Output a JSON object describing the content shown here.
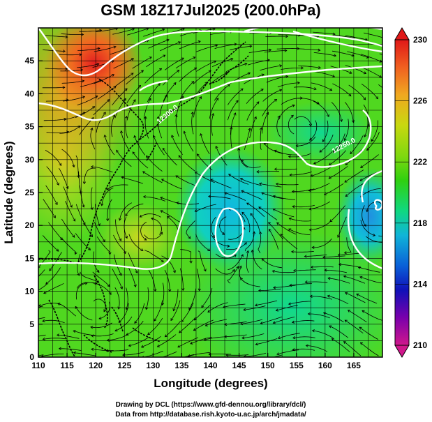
{
  "title": "GSM 18Z17Jul2025 (200.0hPa)",
  "xaxis": {
    "label": "Longitude (degrees)",
    "range": [
      110,
      170
    ],
    "ticks": [
      "110",
      "115",
      "120",
      "125",
      "130",
      "135",
      "140",
      "145",
      "150",
      "155",
      "160",
      "165"
    ]
  },
  "yaxis": {
    "label": "Latitude  (degrees)",
    "range": [
      0,
      50
    ],
    "ticks": [
      "0",
      "5",
      "10",
      "15",
      "20",
      "25",
      "30",
      "35",
      "40",
      "45"
    ]
  },
  "colorbar": {
    "labels": [
      "230",
      "226",
      "222",
      "218",
      "214",
      "210"
    ],
    "range": [
      210,
      230
    ],
    "colors": [
      "#d0178c",
      "#7a00ac",
      "#1010b8",
      "#0a60d8",
      "#10b4d8",
      "#10d880",
      "#30d010",
      "#80d810",
      "#c8d810",
      "#f0a820",
      "#f06020",
      "#e01818"
    ]
  },
  "contour_labels": [
    "12250.0",
    "12300.0"
  ],
  "credits": {
    "line1": "Drawing by DCL (https://www.gfd-dennou.org/library/dcl/)",
    "line2": "Data from http://database.rish.kyoto-u.ac.jp/arch/jmadata/"
  },
  "chart_data": {
    "type": "heatmap",
    "title": "GSM 18Z17Jul2025 (200.0hPa)",
    "xlabel": "Longitude (degrees)",
    "ylabel": "Latitude  (degrees)",
    "xlim": [
      110,
      170
    ],
    "ylim": [
      0,
      50
    ],
    "color_range": [
      210,
      230
    ],
    "temperature_field": [
      {
        "lon": 120,
        "lat": 45,
        "value": 229
      },
      {
        "lon": 115,
        "lat": 35,
        "value": 226
      },
      {
        "lon": 112,
        "lat": 30,
        "value": 225
      },
      {
        "lon": 145,
        "lat": 22,
        "value": 219
      },
      {
        "lon": 168,
        "lat": 24,
        "value": 218
      },
      {
        "lon": 150,
        "lat": 40,
        "value": 222
      },
      {
        "lon": 130,
        "lat": 20,
        "value": 223
      },
      {
        "lon": 140,
        "lat": 5,
        "value": 221
      }
    ]
  }
}
